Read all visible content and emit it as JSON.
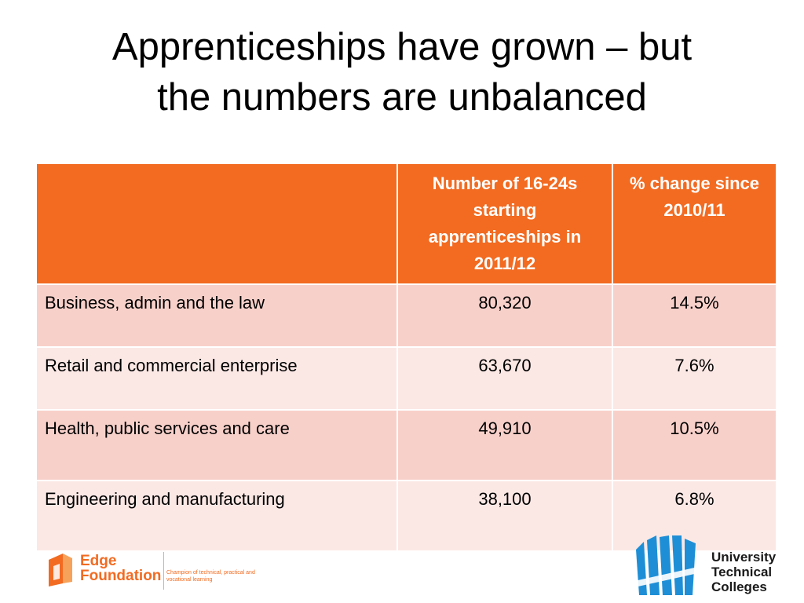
{
  "slide": {
    "title_line1": "Apprenticeships have grown – but",
    "title_line2": "the numbers are unbalanced"
  },
  "table": {
    "headers": [
      "",
      "Number of  16-24s starting apprenticeships in 2011/12",
      "% change since 2010/11"
    ],
    "rows": [
      {
        "sector": "Business, admin and the law",
        "starts": "80,320",
        "change": "14.5%"
      },
      {
        "sector": "Retail and commercial enterprise",
        "starts": "63,670",
        "change": "7.6%"
      },
      {
        "sector": "Health, public services and care",
        "starts": "49,910",
        "change": "10.5%"
      },
      {
        "sector": "Engineering and manufacturing",
        "starts": "38,100",
        "change": "6.8%"
      }
    ]
  },
  "footer": {
    "edge_line1": "Edge",
    "edge_line2": "Foundation",
    "edge_tagline": "Champion of technical, practical and vocational learning",
    "utc_line1": "University",
    "utc_line2": "Technical",
    "utc_line3": "Colleges"
  },
  "colors": {
    "header_orange": "#f26b21",
    "row_dark_pink": "#f8d0ca",
    "row_light_pink": "#fbe8e5",
    "utc_blue": "#1e8fd6"
  }
}
